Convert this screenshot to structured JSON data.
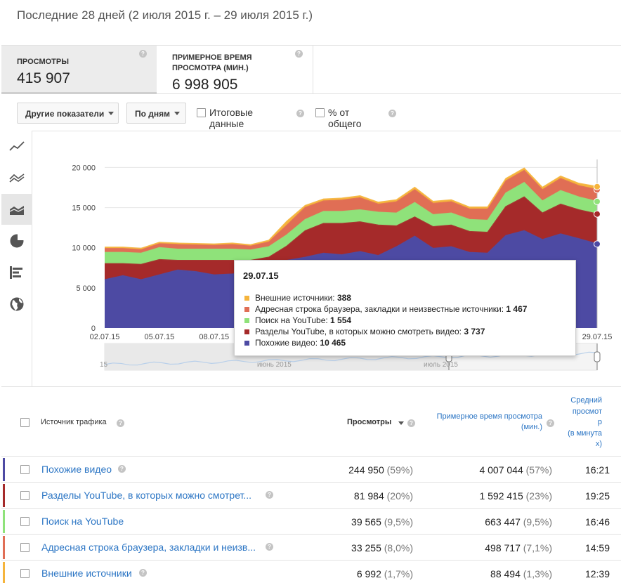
{
  "period": "Последние 28 дней (2 июля 2015 г. – 29 июля 2015 г.)",
  "metrics": [
    {
      "label": "ПРОСМОТРЫ",
      "value": "415 907"
    },
    {
      "label_line1": "ПРИМЕРНОЕ ВРЕМЯ",
      "label_line2": "ПРОСМОТРА (МИН.)",
      "value": "6 998 905"
    }
  ],
  "controls": {
    "other_metrics": "Другие показатели",
    "granularity": "По дням",
    "totals": "Итоговые данные",
    "percent": "% от общего"
  },
  "chart_data": {
    "type": "area",
    "stacked": true,
    "x": [
      "02.07.15",
      "03.07.15",
      "04.07.15",
      "05.07.15",
      "06.07.15",
      "07.07.15",
      "08.07.15",
      "09.07.15",
      "10.07.15",
      "11.07.15",
      "12.07.15",
      "13.07.15",
      "14.07.15",
      "15.07.15",
      "16.07.15",
      "17.07.15",
      "18.07.15",
      "19.07.15",
      "20.07.15",
      "21.07.15",
      "22.07.15",
      "23.07.15",
      "24.07.15",
      "25.07.15",
      "26.07.15",
      "27.07.15",
      "28.07.15",
      "29.07.15"
    ],
    "xtick_labels": [
      "02.07.15",
      "05.07.15",
      "08.07.15",
      "29.07.15"
    ],
    "yticks": [
      "0",
      "5 000",
      "10 000",
      "15 000",
      "20 000"
    ],
    "ylim": [
      0,
      21000
    ],
    "series": [
      {
        "name": "Похожие видео",
        "color": "#4d4aa3",
        "values": [
          6000,
          6500,
          6000,
          6600,
          7200,
          7000,
          6600,
          6700,
          6900,
          7400,
          8400,
          8800,
          9300,
          9100,
          9500,
          9000,
          10100,
          11400,
          9900,
          10100,
          9400,
          9300,
          11500,
          12100,
          11000,
          11700,
          11100,
          10465
        ]
      },
      {
        "name": "Разделы YouTube, в которых можно смотреть видео",
        "color": "#a52a2a",
        "values": [
          2000,
          1500,
          1900,
          1900,
          1200,
          1400,
          1800,
          1700,
          1500,
          1400,
          1800,
          3300,
          3700,
          3900,
          3700,
          3800,
          2600,
          2400,
          2700,
          2700,
          2600,
          2600,
          3600,
          4200,
          3300,
          3700,
          3600,
          3737
        ]
      },
      {
        "name": "Поиск на YouTube",
        "color": "#8fe27a",
        "values": [
          1400,
          1400,
          1400,
          1500,
          1400,
          1400,
          1400,
          1400,
          1300,
          1300,
          1400,
          1400,
          1500,
          1500,
          1500,
          1600,
          1600,
          1800,
          1500,
          1500,
          1500,
          1500,
          1700,
          1800,
          1500,
          1700,
          1600,
          1554
        ]
      },
      {
        "name": "Адресная строка браузера, закладки и неизвестные источники",
        "color": "#e06e55",
        "values": [
          500,
          500,
          450,
          500,
          600,
          550,
          500,
          600,
          500,
          600,
          1200,
          1500,
          1300,
          1400,
          1500,
          1000,
          1400,
          1600,
          1400,
          1400,
          1300,
          1400,
          1500,
          1500,
          1400,
          1500,
          1400,
          1467
        ]
      },
      {
        "name": "Внешние источники",
        "color": "#f5b43c",
        "values": [
          150,
          150,
          150,
          150,
          150,
          150,
          150,
          150,
          150,
          200,
          500,
          250,
          250,
          250,
          250,
          250,
          250,
          300,
          250,
          250,
          250,
          250,
          300,
          300,
          300,
          300,
          300,
          388
        ]
      }
    ],
    "navigator_labels": [
      "15",
      "июнь 2015",
      "июль 2015"
    ]
  },
  "tooltip": {
    "date": "29.07.15",
    "rows": [
      {
        "label": "Внешние источники: ",
        "value": "388",
        "color": "#f5b43c"
      },
      {
        "label": "Адресная строка браузера, закладки и неизвестные источники: ",
        "value": "1 467",
        "color": "#e06e55"
      },
      {
        "label": "Поиск на YouTube: ",
        "value": "1 554",
        "color": "#8fe27a"
      },
      {
        "label": "Разделы YouTube, в которых можно смотреть видео: ",
        "value": "3 737",
        "color": "#a52a2a"
      },
      {
        "label": "Похожие видео: ",
        "value": "10 465",
        "color": "#4d4aa3"
      }
    ]
  },
  "table": {
    "headers": {
      "source": "Источник трафика",
      "views": "Просмотры",
      "watch_time_line1": "Примерное время просмотра",
      "watch_time_line2": "(мин.)",
      "avg_lines": [
        "Средний",
        "просмот",
        "р",
        "(в минута",
        "х)"
      ]
    },
    "rows": [
      {
        "source": "Похожие видео",
        "views": "244 950",
        "views_pct": "(59%)",
        "time": "4 007 044",
        "time_pct": "(57%)",
        "avg": "16:21",
        "color": "#4d4aa3"
      },
      {
        "source": "Разделы YouTube, в которых можно смотрет...",
        "views": "81 984",
        "views_pct": "(20%)",
        "time": "1 592 415",
        "time_pct": "(23%)",
        "avg": "19:25",
        "color": "#a52a2a"
      },
      {
        "source": "Поиск на YouTube",
        "views": "39 565",
        "views_pct": "(9,5%)",
        "time": "663 447",
        "time_pct": "(9,5%)",
        "avg": "16:46",
        "color": "#8fe27a"
      },
      {
        "source": "Адресная строка браузера, закладки и неизв...",
        "views": "33 255",
        "views_pct": "(8,0%)",
        "time": "498 717",
        "time_pct": "(7,1%)",
        "avg": "14:59",
        "color": "#e06e55"
      },
      {
        "source": "Внешние источники",
        "views": "6 992",
        "views_pct": "(1,7%)",
        "time": "88 494",
        "time_pct": "(1,3%)",
        "avg": "12:39",
        "color": "#f5b43c"
      }
    ]
  }
}
